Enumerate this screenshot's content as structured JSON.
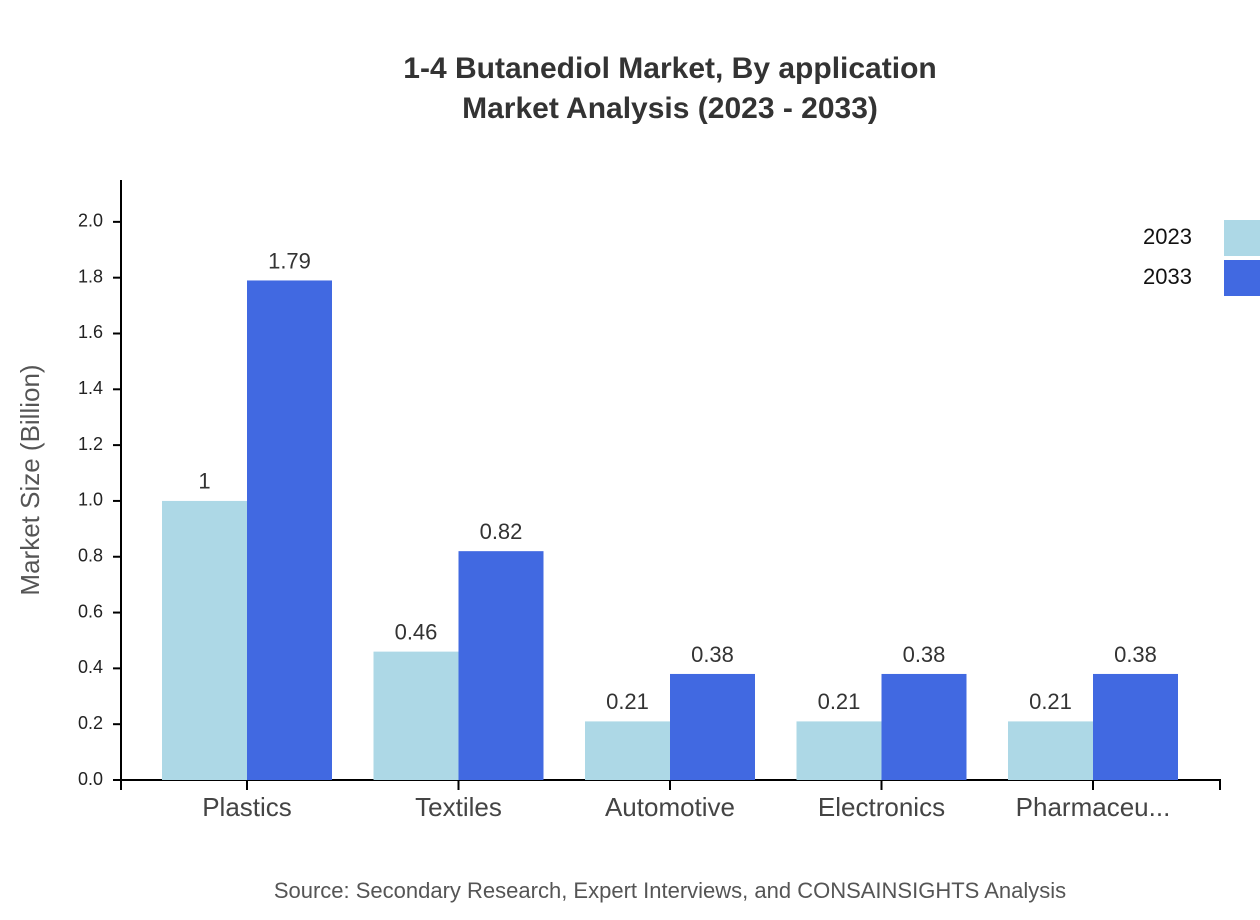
{
  "chart_data": {
    "type": "bar",
    "title": [
      "1-4 Butanediol Market, By application",
      "Market Analysis (2023 - 2033)"
    ],
    "y_label": "Market Size (Billion)",
    "source": "Source: Secondary Research, Expert Interviews, and CONSAINSIGHTS Analysis",
    "categories": [
      "Plastics",
      "Textiles",
      "Automotive",
      "Electronics",
      "Pharmaceu..."
    ],
    "series": [
      {
        "name": "2023",
        "color": "#add8e6",
        "values": [
          1,
          0.46,
          0.21,
          0.21,
          0.21
        ]
      },
      {
        "name": "2033",
        "color": "#4169e1",
        "values": [
          1.79,
          0.82,
          0.38,
          0.38,
          0.38
        ]
      }
    ],
    "ylim": [
      0,
      2.15
    ],
    "yticks": [
      {
        "value": 0,
        "label": "0.0"
      },
      0.2,
      0.4,
      0.6,
      0.8,
      {
        "value": 1,
        "label": "1.0"
      },
      1.2,
      1.4,
      1.6,
      1.8,
      {
        "value": 2,
        "label": "2.0"
      }
    ],
    "legend": "top-right"
  }
}
